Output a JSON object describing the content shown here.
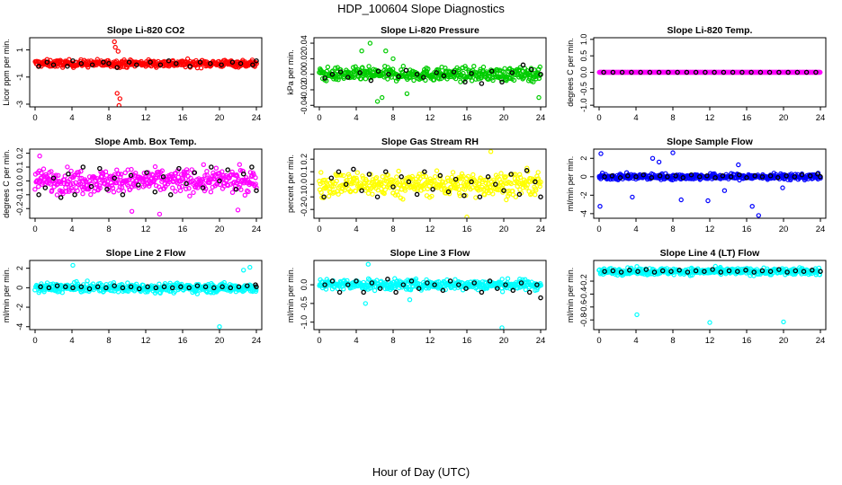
{
  "page": {
    "title": "HDP_100604  Slope Diagnostics",
    "xlabel": "Hour of Day (UTC)"
  },
  "chart_data": [
    {
      "type": "scatter",
      "title": "Slope Li-820 CO2",
      "ylabel": "Licor ppm per min.",
      "xlim": [
        0,
        24
      ],
      "xticks": [
        0,
        4,
        8,
        12,
        16,
        20,
        24
      ],
      "ylim": [
        -3.2,
        1.9
      ],
      "yticks": [
        1,
        -1,
        -3
      ],
      "color": "#ff0000",
      "series_name": "raw",
      "center": 0.0,
      "noise": 0.25,
      "outliers": [
        [
          8.7,
          1.2
        ],
        [
          9.0,
          0.9
        ],
        [
          8.9,
          -2.2
        ],
        [
          9.1,
          -3.1
        ],
        [
          9.2,
          -2.6
        ],
        [
          8.6,
          1.6
        ]
      ],
      "black_points": [
        [
          0.4,
          -0.2
        ],
        [
          1.3,
          0.1
        ],
        [
          2.0,
          -0.1
        ],
        [
          3.5,
          -0.2
        ],
        [
          4.1,
          0.2
        ],
        [
          5.0,
          0.0
        ],
        [
          6.2,
          -0.1
        ],
        [
          7.4,
          0.1
        ],
        [
          8.0,
          0.0
        ],
        [
          8.9,
          -0.3
        ],
        [
          10.2,
          0.1
        ],
        [
          11.0,
          -0.1
        ],
        [
          12.5,
          0.1
        ],
        [
          13.6,
          -0.1
        ],
        [
          14.5,
          0.2
        ],
        [
          15.3,
          0.0
        ],
        [
          16.8,
          -0.2
        ],
        [
          17.9,
          0.1
        ],
        [
          19.0,
          0.0
        ],
        [
          20.2,
          -0.1
        ],
        [
          21.4,
          0.1
        ],
        [
          22.3,
          0.0
        ],
        [
          23.6,
          -0.1
        ],
        [
          24.0,
          0.2
        ]
      ]
    },
    {
      "type": "scatter",
      "title": "Slope Li-820 Pressure",
      "ylabel": "kPa per min.",
      "xlim": [
        0,
        24
      ],
      "xticks": [
        0,
        4,
        8,
        12,
        16,
        20,
        24
      ],
      "ylim": [
        -0.042,
        0.047
      ],
      "yticks": [
        0.04,
        0.02,
        0.0,
        -0.02,
        -0.04
      ],
      "color": "#00cc00",
      "series_name": "raw",
      "center": 0.0,
      "noise": 0.008,
      "outliers": [
        [
          5.5,
          0.04
        ],
        [
          6.3,
          -0.035
        ],
        [
          6.8,
          -0.03
        ],
        [
          7.2,
          0.03
        ],
        [
          8.0,
          0.02
        ],
        [
          9.5,
          -0.025
        ],
        [
          4.6,
          0.03
        ],
        [
          23.8,
          -0.03
        ]
      ],
      "black_points": [
        [
          0.6,
          -0.005
        ],
        [
          1.4,
          0.0
        ],
        [
          2.3,
          0.003
        ],
        [
          3.1,
          -0.004
        ],
        [
          4.4,
          0.002
        ],
        [
          5.6,
          -0.008
        ],
        [
          6.4,
          0.004
        ],
        [
          7.5,
          0.0
        ],
        [
          8.6,
          -0.003
        ],
        [
          9.4,
          0.005
        ],
        [
          10.6,
          0.0
        ],
        [
          11.3,
          -0.004
        ],
        [
          12.7,
          0.002
        ],
        [
          13.5,
          -0.002
        ],
        [
          14.6,
          0.003
        ],
        [
          15.8,
          -0.01
        ],
        [
          16.5,
          0.001
        ],
        [
          17.6,
          -0.012
        ],
        [
          18.7,
          0.004
        ],
        [
          19.8,
          -0.01
        ],
        [
          20.9,
          0.002
        ],
        [
          22.1,
          0.012
        ],
        [
          23.0,
          0.006
        ],
        [
          24.0,
          0.0
        ]
      ]
    },
    {
      "type": "scatter",
      "title": "Slope Li-820 Temp.",
      "ylabel": "degrees C per min.",
      "xlim": [
        0,
        24
      ],
      "xticks": [
        0,
        4,
        8,
        12,
        16,
        20,
        24
      ],
      "ylim": [
        -1.05,
        1.05
      ],
      "yticks": [
        1.0,
        0.5,
        0.0,
        -0.5,
        -1.0
      ],
      "color": "#ff00ff",
      "series_name": "raw",
      "center": 0.0,
      "noise": 0.0,
      "outliers": [],
      "black_points": [
        [
          0.5,
          0.0
        ],
        [
          1.5,
          0.0
        ],
        [
          2.5,
          0.0
        ],
        [
          3.5,
          0.0
        ],
        [
          4.5,
          0.0
        ],
        [
          5.5,
          0.0
        ],
        [
          6.5,
          0.0
        ],
        [
          7.5,
          0.0
        ],
        [
          8.5,
          0.0
        ],
        [
          9.5,
          0.0
        ],
        [
          10.5,
          0.0
        ],
        [
          11.5,
          0.0
        ],
        [
          12.5,
          0.0
        ],
        [
          13.5,
          0.0
        ],
        [
          14.5,
          0.0
        ],
        [
          15.5,
          0.0
        ],
        [
          16.5,
          0.0
        ],
        [
          17.5,
          0.0
        ],
        [
          18.5,
          0.0
        ],
        [
          19.5,
          0.0
        ],
        [
          20.5,
          0.0
        ],
        [
          21.5,
          0.0
        ],
        [
          22.5,
          0.0
        ],
        [
          23.5,
          0.0
        ]
      ]
    },
    {
      "type": "scatter",
      "title": "Slope Amb. Box Temp.",
      "ylabel": "degrees C per min.",
      "xlim": [
        0,
        24
      ],
      "xticks": [
        0,
        4,
        8,
        12,
        16,
        20,
        24
      ],
      "ylim": [
        -0.27,
        0.23
      ],
      "yticks": [
        0.2,
        0.1,
        0.0,
        -0.1,
        -0.2
      ],
      "color": "#ff00ff",
      "series_name": "raw",
      "center": 0.0,
      "noise": 0.08,
      "outliers": [
        [
          0.5,
          0.18
        ],
        [
          10.5,
          -0.22
        ],
        [
          13.5,
          -0.24
        ],
        [
          22.0,
          -0.21
        ]
      ],
      "black_points": [
        [
          0.4,
          -0.1
        ],
        [
          1.1,
          -0.05
        ],
        [
          2.0,
          0.02
        ],
        [
          2.8,
          -0.12
        ],
        [
          3.6,
          0.05
        ],
        [
          4.3,
          -0.1
        ],
        [
          5.2,
          0.1
        ],
        [
          6.1,
          -0.04
        ],
        [
          7.0,
          0.09
        ],
        [
          7.8,
          -0.06
        ],
        [
          8.6,
          0.02
        ],
        [
          9.5,
          -0.1
        ],
        [
          10.4,
          0.04
        ],
        [
          11.2,
          -0.03
        ],
        [
          12.1,
          0.06
        ],
        [
          13.0,
          -0.08
        ],
        [
          13.9,
          0.03
        ],
        [
          14.7,
          -0.1
        ],
        [
          15.6,
          0.09
        ],
        [
          16.4,
          -0.02
        ],
        [
          17.3,
          0.06
        ],
        [
          18.2,
          -0.05
        ],
        [
          19.1,
          0.1
        ],
        [
          20.0,
          0.0
        ],
        [
          20.9,
          0.08
        ],
        [
          21.8,
          -0.06
        ],
        [
          22.6,
          0.05
        ],
        [
          23.5,
          0.1
        ],
        [
          24.0,
          -0.07
        ]
      ]
    },
    {
      "type": "scatter",
      "title": "Slope Gas Stream RH",
      "ylabel": "percent per min.",
      "xlim": [
        0,
        24
      ],
      "xticks": [
        0,
        4,
        8,
        12,
        16,
        20,
        24
      ],
      "ylim": [
        -0.27,
        0.28
      ],
      "yticks": [
        0.2,
        0.1,
        0.0,
        -0.1,
        -0.2
      ],
      "color": "#ffff00",
      "series_name": "raw",
      "center": 0.0,
      "noise": 0.09,
      "outliers": [
        [
          18.6,
          0.26
        ],
        [
          16.0,
          -0.26
        ]
      ],
      "black_points": [
        [
          0.5,
          -0.1
        ],
        [
          1.3,
          0.05
        ],
        [
          2.1,
          0.1
        ],
        [
          2.9,
          0.0
        ],
        [
          3.7,
          0.12
        ],
        [
          4.6,
          -0.05
        ],
        [
          5.4,
          0.08
        ],
        [
          6.3,
          -0.1
        ],
        [
          7.2,
          0.1
        ],
        [
          8.0,
          -0.02
        ],
        [
          8.9,
          0.06
        ],
        [
          9.7,
          0.02
        ],
        [
          10.6,
          -0.08
        ],
        [
          11.4,
          0.1
        ],
        [
          12.3,
          -0.04
        ],
        [
          13.1,
          0.07
        ],
        [
          14.0,
          -0.06
        ],
        [
          14.8,
          0.04
        ],
        [
          15.7,
          -0.09
        ],
        [
          16.5,
          0.02
        ],
        [
          17.4,
          -0.1
        ],
        [
          18.3,
          0.06
        ],
        [
          19.1,
          0.0
        ],
        [
          20.0,
          -0.05
        ],
        [
          20.8,
          0.08
        ],
        [
          21.7,
          -0.08
        ],
        [
          22.5,
          0.11
        ],
        [
          23.4,
          0.02
        ],
        [
          24.0,
          -0.1
        ]
      ]
    },
    {
      "type": "scatter",
      "title": "Slope Sample Flow",
      "ylabel": "ml/min per min.",
      "xlim": [
        0,
        24
      ],
      "xticks": [
        0,
        4,
        8,
        12,
        16,
        20,
        24
      ],
      "ylim": [
        -4.5,
        3.0
      ],
      "yticks": [
        2,
        0,
        -2,
        -4
      ],
      "color": "#0000ff",
      "series_name": "raw",
      "center": 0.0,
      "noise": 0.3,
      "outliers": [
        [
          0.2,
          2.5
        ],
        [
          0.1,
          -3.2
        ],
        [
          3.6,
          -2.2
        ],
        [
          5.8,
          2.0
        ],
        [
          8.0,
          2.6
        ],
        [
          8.9,
          -2.5
        ],
        [
          11.8,
          -2.6
        ],
        [
          15.1,
          1.3
        ],
        [
          16.6,
          -3.2
        ],
        [
          17.3,
          -4.2
        ],
        [
          19.9,
          -1.2
        ],
        [
          13.6,
          -1.5
        ],
        [
          6.5,
          1.6
        ]
      ],
      "black_points": [
        [
          0.6,
          0.0
        ],
        [
          1.4,
          0.1
        ],
        [
          2.3,
          -0.1
        ],
        [
          3.1,
          0.1
        ],
        [
          4.0,
          0.0
        ],
        [
          4.8,
          0.2
        ],
        [
          5.7,
          -0.1
        ],
        [
          6.6,
          0.1
        ],
        [
          7.4,
          0.0
        ],
        [
          8.3,
          0.1
        ],
        [
          9.1,
          -0.1
        ],
        [
          10.0,
          0.2
        ],
        [
          10.9,
          0.0
        ],
        [
          11.7,
          0.1
        ],
        [
          12.6,
          -0.1
        ],
        [
          13.4,
          0.1
        ],
        [
          14.3,
          0.0
        ],
        [
          15.2,
          0.2
        ],
        [
          16.0,
          -0.1
        ],
        [
          16.9,
          0.1
        ],
        [
          17.7,
          0.0
        ],
        [
          18.6,
          0.1
        ],
        [
          19.4,
          -0.1
        ],
        [
          20.3,
          0.1
        ],
        [
          21.2,
          0.0
        ],
        [
          22.0,
          0.2
        ],
        [
          22.9,
          0.1
        ],
        [
          23.7,
          0.3
        ],
        [
          24.0,
          0.0
        ]
      ]
    },
    {
      "type": "scatter",
      "title": "Slope Line 2 Flow",
      "ylabel": "ml/min per min.",
      "xlim": [
        0,
        24
      ],
      "xticks": [
        0,
        4,
        8,
        12,
        16,
        20,
        24
      ],
      "ylim": [
        -4.3,
        2.8
      ],
      "yticks": [
        2,
        0,
        -2,
        -4
      ],
      "color": "#00ffff",
      "series_name": "raw",
      "center": 0.0,
      "noise": 0.45,
      "outliers": [
        [
          4.1,
          2.3
        ],
        [
          20.0,
          -4.0
        ],
        [
          23.3,
          2.1
        ],
        [
          22.6,
          1.8
        ]
      ],
      "black_points": [
        [
          0.6,
          0.1
        ],
        [
          1.5,
          0.0
        ],
        [
          2.4,
          0.2
        ],
        [
          3.3,
          0.1
        ],
        [
          4.1,
          0.0
        ],
        [
          5.0,
          0.1
        ],
        [
          5.9,
          -0.1
        ],
        [
          6.8,
          0.1
        ],
        [
          7.7,
          0.0
        ],
        [
          8.6,
          0.2
        ],
        [
          9.5,
          0.0
        ],
        [
          10.4,
          0.1
        ],
        [
          11.3,
          -0.1
        ],
        [
          12.2,
          0.1
        ],
        [
          13.1,
          0.0
        ],
        [
          14.0,
          0.1
        ],
        [
          14.9,
          0.0
        ],
        [
          15.8,
          0.1
        ],
        [
          16.7,
          0.0
        ],
        [
          17.6,
          0.2
        ],
        [
          18.5,
          0.1
        ],
        [
          19.4,
          0.0
        ],
        [
          20.3,
          0.1
        ],
        [
          21.2,
          0.0
        ],
        [
          22.1,
          0.1
        ],
        [
          23.0,
          0.2
        ],
        [
          23.9,
          0.3
        ],
        [
          24.0,
          0.1
        ]
      ]
    },
    {
      "type": "scatter",
      "title": "Slope Line 3 Flow",
      "ylabel": "ml/min per min.",
      "xlim": [
        0,
        24
      ],
      "xticks": [
        0,
        4,
        8,
        12,
        16,
        20,
        24
      ],
      "ylim": [
        -1.2,
        0.65
      ],
      "yticks": [
        0.0,
        -0.5,
        -1.0
      ],
      "color": "#00ffff",
      "series_name": "raw",
      "center": 0.0,
      "noise": 0.13,
      "outliers": [
        [
          5.3,
          0.55
        ],
        [
          5.0,
          -0.5
        ],
        [
          19.8,
          -1.15
        ],
        [
          9.8,
          -0.4
        ]
      ],
      "black_points": [
        [
          0.6,
          0.0
        ],
        [
          1.4,
          0.1
        ],
        [
          2.2,
          -0.2
        ],
        [
          3.1,
          0.0
        ],
        [
          4.0,
          0.1
        ],
        [
          4.8,
          -0.2
        ],
        [
          5.7,
          0.05
        ],
        [
          6.6,
          -0.1
        ],
        [
          7.4,
          0.15
        ],
        [
          8.3,
          -0.2
        ],
        [
          9.1,
          0.0
        ],
        [
          10.0,
          0.1
        ],
        [
          10.8,
          -0.1
        ],
        [
          11.7,
          0.05
        ],
        [
          12.5,
          0.0
        ],
        [
          13.4,
          -0.15
        ],
        [
          14.2,
          0.1
        ],
        [
          15.1,
          0.0
        ],
        [
          15.9,
          -0.1
        ],
        [
          16.8,
          0.05
        ],
        [
          17.6,
          -0.2
        ],
        [
          18.5,
          0.1
        ],
        [
          19.3,
          -0.1
        ],
        [
          20.2,
          0.0
        ],
        [
          21.0,
          -0.15
        ],
        [
          21.9,
          0.05
        ],
        [
          22.8,
          -0.2
        ],
        [
          23.6,
          0.0
        ],
        [
          24.0,
          -0.35
        ]
      ]
    },
    {
      "type": "scatter",
      "title": "Slope Line 4 (LT) Flow",
      "ylabel": "ml/min per min.",
      "xlim": [
        0,
        24
      ],
      "xticks": [
        0,
        4,
        8,
        12,
        16,
        20,
        24
      ],
      "ylim": [
        -0.95,
        0.12
      ],
      "yticks": [
        -0.2,
        -0.4,
        -0.6,
        -0.8
      ],
      "color": "#00ffff",
      "series_name": "raw",
      "center": -0.05,
      "noise": 0.05,
      "outliers": [
        [
          4.1,
          -0.72
        ],
        [
          12.0,
          -0.84
        ],
        [
          20.0,
          -0.83
        ]
      ],
      "black_points": [
        [
          0.6,
          -0.05
        ],
        [
          1.5,
          -0.04
        ],
        [
          2.4,
          -0.06
        ],
        [
          3.3,
          -0.03
        ],
        [
          4.2,
          -0.05
        ],
        [
          5.1,
          -0.02
        ],
        [
          6.0,
          -0.06
        ],
        [
          6.9,
          -0.04
        ],
        [
          7.8,
          -0.05
        ],
        [
          8.7,
          -0.03
        ],
        [
          9.6,
          -0.06
        ],
        [
          10.5,
          -0.04
        ],
        [
          11.4,
          -0.05
        ],
        [
          12.3,
          -0.02
        ],
        [
          13.2,
          -0.06
        ],
        [
          14.1,
          -0.04
        ],
        [
          15.0,
          -0.05
        ],
        [
          15.9,
          -0.03
        ],
        [
          16.8,
          -0.06
        ],
        [
          17.7,
          -0.04
        ],
        [
          18.6,
          -0.05
        ],
        [
          19.5,
          -0.02
        ],
        [
          20.4,
          -0.06
        ],
        [
          21.3,
          -0.04
        ],
        [
          22.2,
          -0.05
        ],
        [
          23.1,
          -0.03
        ],
        [
          24.0,
          -0.05
        ]
      ]
    }
  ]
}
